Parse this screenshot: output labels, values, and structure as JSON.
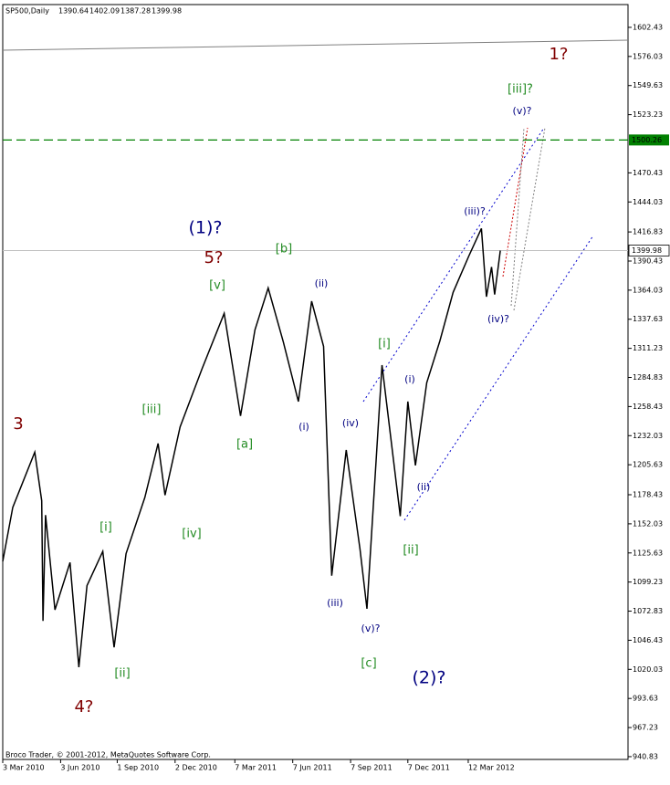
{
  "chart_data": {
    "type": "line",
    "title": "SP500,Daily",
    "ohlc": {
      "open": 1390.64,
      "high": 1402.09,
      "low": 1387.28,
      "close": 1399.98
    },
    "footer": "Broco Trader, © 2001-2012, MetaQuotes Software Corp.",
    "color": "#000000",
    "x": [
      "2010-03-03",
      "2010-03-19",
      "2010-04-23",
      "2010-05-04",
      "2010-05-06",
      "2010-05-10",
      "2010-05-25",
      "2010-06-18",
      "2010-07-02",
      "2010-07-15",
      "2010-08-09",
      "2010-08-27",
      "2010-09-15",
      "2010-10-15",
      "2010-11-05",
      "2010-11-16",
      "2010-12-10",
      "2011-01-14",
      "2011-02-18",
      "2011-03-16",
      "2011-04-08",
      "2011-04-29",
      "2011-05-23",
      "2011-06-16",
      "2011-07-07",
      "2011-07-26",
      "2011-08-08",
      "2011-08-31",
      "2011-09-22",
      "2011-10-03",
      "2011-10-27",
      "2011-11-25",
      "2011-12-07",
      "2011-12-19",
      "2012-01-06",
      "2012-01-27",
      "2012-02-17",
      "2012-03-13",
      "2012-04-02",
      "2012-04-10",
      "2012-04-18",
      "2012-04-23",
      "2012-05-02"
    ],
    "values": [
      1118,
      1167,
      1217,
      1173,
      1064,
      1160,
      1074,
      1117,
      1022,
      1096,
      1127,
      1040,
      1125,
      1176,
      1225,
      1178,
      1240,
      1293,
      1343,
      1250,
      1328,
      1366,
      1317,
      1263,
      1354,
      1313,
      1105,
      1219,
      1129,
      1075,
      1296,
      1159,
      1263,
      1205,
      1280,
      1318,
      1362,
      1395,
      1420,
      1358,
      1385,
      1360,
      1399.98
    ],
    "xlim": [
      "2010-03-03",
      "2012-11-21"
    ],
    "xticks": [
      {
        "value": "2010-03-03",
        "label": "3 Mar 2010"
      },
      {
        "value": "2010-06-03",
        "label": "3 Jun 2010"
      },
      {
        "value": "2010-09-01",
        "label": "1 Sep 2010"
      },
      {
        "value": "2010-12-02",
        "label": "2 Dec 2010"
      },
      {
        "value": "2011-03-07",
        "label": "7 Mar 2011"
      },
      {
        "value": "2011-06-07",
        "label": "7 Jun 2011"
      },
      {
        "value": "2011-09-07",
        "label": "7 Sep 2011"
      },
      {
        "value": "2011-12-07",
        "label": "7 Dec 2011"
      },
      {
        "value": "2012-03-12",
        "label": "12 Mar 2012"
      }
    ],
    "ylim": [
      938.3,
      1623.1
    ],
    "yticks": [
      1602.43,
      1576.03,
      1549.63,
      1523.23,
      1470.43,
      1444.03,
      1416.83,
      1390.43,
      1364.03,
      1337.63,
      1311.23,
      1284.83,
      1258.43,
      1232.03,
      1205.63,
      1178.43,
      1152.03,
      1125.63,
      1099.23,
      1072.83,
      1046.43,
      1020.03,
      993.63,
      967.23,
      940.83
    ],
    "level": {
      "value": 1500.26,
      "color": "#008000"
    },
    "annotations": [
      {
        "text": "3",
        "color": "#800000"
      },
      {
        "text": "4?",
        "color": "#800000"
      },
      {
        "text": "5?",
        "color": "#800000"
      },
      {
        "text": "1?",
        "color": "#800000"
      },
      {
        "text": "(1)?",
        "color": "#000080"
      },
      {
        "text": "(2)?",
        "color": "#000080"
      },
      {
        "text": "[i]",
        "color": "#228b22"
      },
      {
        "text": "[ii]",
        "color": "#228b22"
      },
      {
        "text": "[iii]",
        "color": "#228b22"
      },
      {
        "text": "[iv]",
        "color": "#228b22"
      },
      {
        "text": "[v]",
        "color": "#228b22"
      },
      {
        "text": "[a]",
        "color": "#228b22"
      },
      {
        "text": "[b]",
        "color": "#228b22"
      },
      {
        "text": "[c]",
        "color": "#228b22"
      },
      {
        "text": "[i]",
        "color": "#228b22"
      },
      {
        "text": "[ii]",
        "color": "#228b22"
      },
      {
        "text": "[iii]?",
        "color": "#228b22"
      },
      {
        "text": "(i)",
        "color": "#000080"
      },
      {
        "text": "(ii)",
        "color": "#000080"
      },
      {
        "text": "(iii)",
        "color": "#000080"
      },
      {
        "text": "(iv)",
        "color": "#000080"
      },
      {
        "text": "(v)?",
        "color": "#000080"
      },
      {
        "text": "(i)",
        "color": "#000080"
      },
      {
        "text": "(ii)",
        "color": "#000080"
      },
      {
        "text": "(iii)?",
        "color": "#000080"
      },
      {
        "text": "(iv)?",
        "color": "#000080"
      },
      {
        "text": "(v)?",
        "color": "#000080"
      }
    ]
  }
}
